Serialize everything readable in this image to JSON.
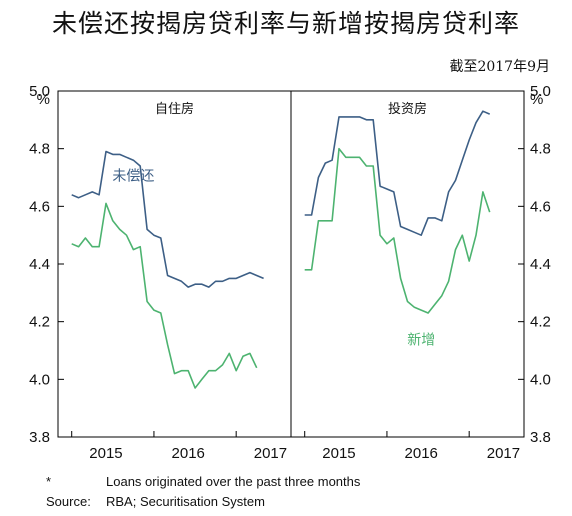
{
  "title": "未偿还按揭房贷利率与新增按揭房贷利率",
  "as_of": "截至2017年9月",
  "footnotes": {
    "star_key": "*",
    "star_text": "Loans originated over the past three months",
    "source_key": "Source:",
    "source_text": "RBA; Securitisation System"
  },
  "colors": {
    "outstanding": "#3d5f86",
    "new": "#4db370",
    "frame": "#000000"
  },
  "chart_data": {
    "type": "line",
    "unit_label": "%",
    "ylim": [
      3.8,
      5.0
    ],
    "yticks": [
      "3.8",
      "4.0",
      "4.2",
      "4.4",
      "4.6",
      "4.8",
      "5.0"
    ],
    "xlim": [
      "2014-11",
      "2017-09"
    ],
    "xticks": [
      {
        "label": "2015",
        "x": "2015-06"
      },
      {
        "label": "2016",
        "x": "2016-06"
      },
      {
        "label": "2017",
        "x": "2017-06"
      }
    ],
    "grid": false,
    "panels": [
      {
        "name": "自住房",
        "series": [
          {
            "name": "未偿还",
            "color": "#3d5f86",
            "points": [
              [
                "2015-01",
                4.64
              ],
              [
                "2015-02",
                4.63
              ],
              [
                "2015-03",
                4.64
              ],
              [
                "2015-04",
                4.65
              ],
              [
                "2015-05",
                4.64
              ],
              [
                "2015-06",
                4.79
              ],
              [
                "2015-07",
                4.78
              ],
              [
                "2015-08",
                4.78
              ],
              [
                "2015-09",
                4.77
              ],
              [
                "2015-10",
                4.76
              ],
              [
                "2015-11",
                4.74
              ],
              [
                "2015-12",
                4.52
              ],
              [
                "2016-01",
                4.5
              ],
              [
                "2016-02",
                4.49
              ],
              [
                "2016-03",
                4.36
              ],
              [
                "2016-04",
                4.35
              ],
              [
                "2016-05",
                4.34
              ],
              [
                "2016-06",
                4.32
              ],
              [
                "2016-07",
                4.33
              ],
              [
                "2016-08",
                4.33
              ],
              [
                "2016-09",
                4.32
              ],
              [
                "2016-10",
                4.34
              ],
              [
                "2016-11",
                4.34
              ],
              [
                "2016-12",
                4.35
              ],
              [
                "2017-01",
                4.35
              ],
              [
                "2017-02",
                4.36
              ],
              [
                "2017-03",
                4.37
              ],
              [
                "2017-04",
                4.36
              ],
              [
                "2017-05",
                4.35
              ]
            ]
          },
          {
            "name": "新增",
            "color": "#4db370",
            "points": [
              [
                "2015-01",
                4.47
              ],
              [
                "2015-02",
                4.46
              ],
              [
                "2015-03",
                4.49
              ],
              [
                "2015-04",
                4.46
              ],
              [
                "2015-05",
                4.46
              ],
              [
                "2015-06",
                4.61
              ],
              [
                "2015-07",
                4.55
              ],
              [
                "2015-08",
                4.52
              ],
              [
                "2015-09",
                4.5
              ],
              [
                "2015-10",
                4.45
              ],
              [
                "2015-11",
                4.46
              ],
              [
                "2015-12",
                4.27
              ],
              [
                "2016-01",
                4.24
              ],
              [
                "2016-02",
                4.23
              ],
              [
                "2016-03",
                4.12
              ],
              [
                "2016-04",
                4.02
              ],
              [
                "2016-05",
                4.03
              ],
              [
                "2016-06",
                4.03
              ],
              [
                "2016-07",
                3.97
              ],
              [
                "2016-08",
                4.0
              ],
              [
                "2016-09",
                4.03
              ],
              [
                "2016-10",
                4.03
              ],
              [
                "2016-11",
                4.05
              ],
              [
                "2016-12",
                4.09
              ],
              [
                "2017-01",
                4.03
              ],
              [
                "2017-02",
                4.08
              ],
              [
                "2017-03",
                4.09
              ],
              [
                "2017-04",
                4.04
              ]
            ]
          }
        ]
      },
      {
        "name": "投资房",
        "series": [
          {
            "name": "未偿还",
            "color": "#3d5f86",
            "points": [
              [
                "2015-01",
                4.57
              ],
              [
                "2015-02",
                4.57
              ],
              [
                "2015-03",
                4.7
              ],
              [
                "2015-04",
                4.75
              ],
              [
                "2015-05",
                4.76
              ],
              [
                "2015-06",
                4.91
              ],
              [
                "2015-07",
                4.91
              ],
              [
                "2015-08",
                4.91
              ],
              [
                "2015-09",
                4.91
              ],
              [
                "2015-10",
                4.9
              ],
              [
                "2015-11",
                4.9
              ],
              [
                "2015-12",
                4.67
              ],
              [
                "2016-01",
                4.66
              ],
              [
                "2016-02",
                4.65
              ],
              [
                "2016-03",
                4.53
              ],
              [
                "2016-04",
                4.52
              ],
              [
                "2016-05",
                4.51
              ],
              [
                "2016-06",
                4.5
              ],
              [
                "2016-07",
                4.56
              ],
              [
                "2016-08",
                4.56
              ],
              [
                "2016-09",
                4.55
              ],
              [
                "2016-10",
                4.65
              ],
              [
                "2016-11",
                4.69
              ],
              [
                "2016-12",
                4.76
              ],
              [
                "2017-01",
                4.83
              ],
              [
                "2017-02",
                4.89
              ],
              [
                "2017-03",
                4.93
              ],
              [
                "2017-04",
                4.92
              ]
            ]
          },
          {
            "name": "新增",
            "color": "#4db370",
            "points": [
              [
                "2015-01",
                4.38
              ],
              [
                "2015-02",
                4.38
              ],
              [
                "2015-03",
                4.55
              ],
              [
                "2015-04",
                4.55
              ],
              [
                "2015-05",
                4.55
              ],
              [
                "2015-06",
                4.8
              ],
              [
                "2015-07",
                4.77
              ],
              [
                "2015-08",
                4.77
              ],
              [
                "2015-09",
                4.77
              ],
              [
                "2015-10",
                4.74
              ],
              [
                "2015-11",
                4.74
              ],
              [
                "2015-12",
                4.5
              ],
              [
                "2016-01",
                4.47
              ],
              [
                "2016-02",
                4.49
              ],
              [
                "2016-03",
                4.35
              ],
              [
                "2016-04",
                4.27
              ],
              [
                "2016-05",
                4.25
              ],
              [
                "2016-06",
                4.24
              ],
              [
                "2016-07",
                4.23
              ],
              [
                "2016-08",
                4.26
              ],
              [
                "2016-09",
                4.29
              ],
              [
                "2016-10",
                4.34
              ],
              [
                "2016-11",
                4.45
              ],
              [
                "2016-12",
                4.5
              ],
              [
                "2017-01",
                4.41
              ],
              [
                "2017-02",
                4.5
              ],
              [
                "2017-03",
                4.65
              ],
              [
                "2017-04",
                4.58
              ]
            ]
          }
        ]
      }
    ],
    "annotations": [
      {
        "panel": 0,
        "text": "未偿还",
        "series": "未偿还",
        "x": "2015-10",
        "y": 4.69
      },
      {
        "panel": 1,
        "text": "新增",
        "series": "新增",
        "x": "2016-06",
        "y": 4.12
      }
    ]
  }
}
